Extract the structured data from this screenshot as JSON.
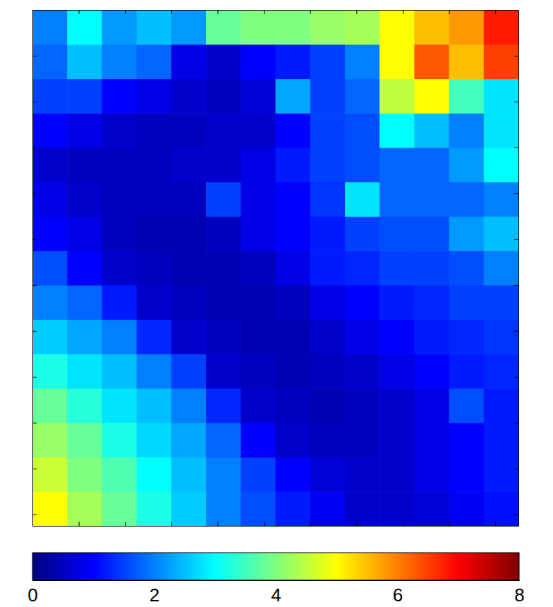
{
  "chart_data": {
    "type": "heatmap",
    "color": "jet",
    "tick_labels": false,
    "xlim": [
      0,
      10.5
    ],
    "xticks": [
      1,
      2,
      3,
      4,
      5,
      6,
      7,
      8,
      9,
      10
    ],
    "ylim": [
      -0.25,
      11
    ],
    "yticks": [
      0,
      1,
      2,
      3,
      4,
      5,
      6,
      7,
      8,
      9,
      10,
      11
    ],
    "x": [
      0.375,
      1.125,
      1.875,
      2.625,
      3.375,
      4.125,
      4.875,
      5.625,
      6.375,
      7.125,
      7.875,
      8.625,
      9.375,
      10.125
    ],
    "y": [
      0.125,
      0.875,
      1.625,
      2.375,
      3.125,
      3.875,
      4.625,
      5.375,
      6.125,
      6.875,
      7.625,
      8.375,
      9.125,
      9.875,
      10.625
    ],
    "z": [
      [
        5.0,
        4.3,
        3.8,
        3.2,
        2.6,
        2.0,
        1.6,
        1.2,
        0.9,
        0.6,
        0.6,
        0.7,
        0.9,
        1.1
      ],
      [
        4.6,
        4.0,
        3.6,
        3.0,
        2.5,
        2.0,
        1.5,
        1.0,
        0.7,
        0.6,
        0.6,
        0.8,
        1.0,
        1.2
      ],
      [
        4.2,
        3.8,
        3.2,
        2.7,
        2.3,
        1.8,
        1.0,
        0.6,
        0.5,
        0.5,
        0.6,
        0.8,
        1.0,
        1.2
      ],
      [
        3.8,
        3.3,
        2.8,
        2.5,
        2.0,
        1.3,
        0.6,
        0.5,
        0.4,
        0.5,
        0.6,
        0.8,
        1.6,
        1.2
      ],
      [
        3.2,
        2.8,
        2.5,
        2.0,
        1.5,
        0.6,
        0.5,
        0.4,
        0.5,
        0.6,
        0.8,
        1.0,
        1.2,
        1.3
      ],
      [
        2.6,
        2.3,
        2.0,
        1.3,
        0.6,
        0.5,
        0.4,
        0.4,
        0.6,
        0.8,
        1.0,
        1.2,
        1.3,
        1.4
      ],
      [
        2.0,
        1.8,
        1.2,
        0.6,
        0.5,
        0.4,
        0.4,
        0.5,
        0.8,
        1.0,
        1.2,
        1.3,
        1.5,
        1.5
      ],
      [
        1.6,
        1.0,
        0.6,
        0.5,
        0.4,
        0.4,
        0.5,
        0.8,
        1.2,
        1.3,
        1.5,
        1.5,
        1.6,
        2.0
      ],
      [
        1.0,
        0.8,
        0.5,
        0.4,
        0.4,
        0.5,
        0.8,
        1.0,
        1.2,
        1.5,
        1.6,
        1.6,
        2.2,
        2.5
      ],
      [
        0.8,
        0.6,
        0.5,
        0.5,
        0.5,
        1.5,
        0.8,
        1.0,
        1.4,
        2.8,
        1.8,
        1.8,
        1.8,
        2.0
      ],
      [
        0.6,
        0.5,
        0.5,
        0.5,
        0.6,
        0.6,
        0.8,
        1.2,
        1.5,
        1.6,
        1.8,
        1.8,
        2.2,
        3.0
      ],
      [
        1.0,
        0.8,
        0.6,
        0.5,
        0.5,
        0.6,
        0.6,
        1.0,
        1.5,
        1.6,
        3.0,
        2.5,
        2.0,
        2.8
      ],
      [
        1.5,
        1.5,
        1.0,
        0.8,
        0.6,
        0.5,
        0.7,
        2.3,
        1.5,
        1.8,
        4.5,
        5.0,
        3.5,
        2.8
      ],
      [
        1.8,
        2.5,
        2.0,
        1.8,
        0.8,
        0.6,
        1.0,
        1.2,
        1.5,
        2.0,
        5.0,
        6.3,
        5.5,
        6.5
      ],
      [
        2.0,
        3.0,
        2.2,
        2.5,
        2.2,
        3.8,
        4.0,
        4.0,
        4.2,
        4.3,
        5.0,
        5.5,
        5.8,
        6.8
      ]
    ],
    "colorbar": {
      "range": [
        0,
        8
      ],
      "ticks": [
        0,
        2,
        4,
        6,
        8
      ]
    }
  }
}
